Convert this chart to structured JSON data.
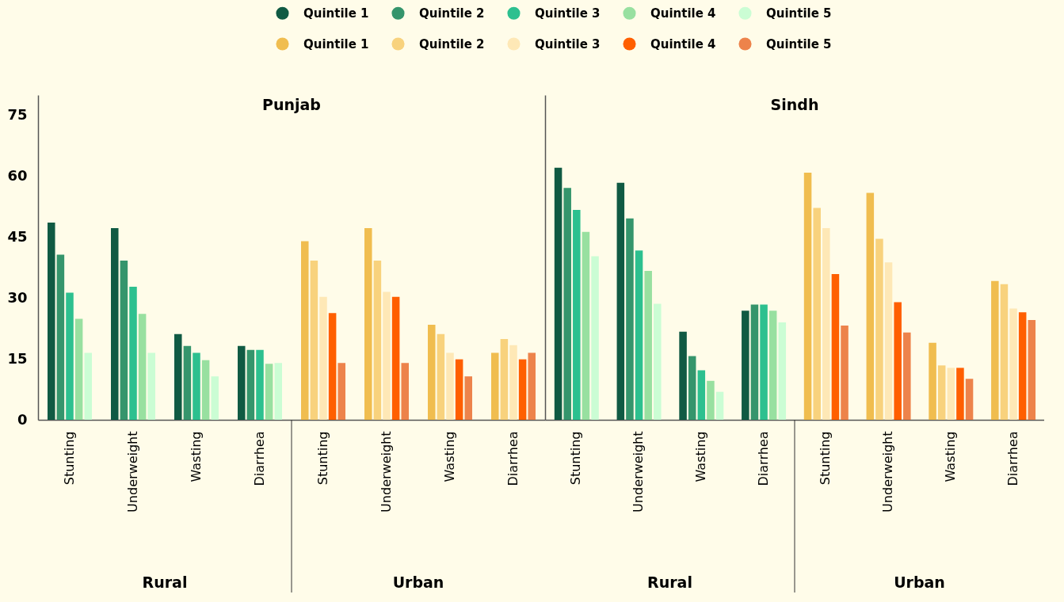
{
  "chart_data": [
    {
      "type": "bar",
      "title": "Punjab",
      "categories": [
        "Stunting",
        "Underweight",
        "Wasting",
        "Diarrhea",
        "Stunting",
        "Underweight",
        "Wasting",
        "Diarrhea"
      ],
      "ylim": [
        0,
        80
      ],
      "yticks": [
        0,
        15,
        30,
        45,
        60,
        75
      ],
      "legend": "top",
      "annotations": [
        "Rural",
        "Urban"
      ],
      "series": [
        {
          "name": "Quintile 1",
          "color": "#105a43",
          "values": [
            48.6,
            47.2,
            21.1,
            18.2,
            null,
            null,
            null,
            null
          ]
        },
        {
          "name": "Quintile 2",
          "color": "#35956c",
          "values": [
            40.7,
            39.2,
            18.2,
            17.2,
            null,
            null,
            null,
            null
          ]
        },
        {
          "name": "Quintile 3",
          "color": "#2dc08f",
          "values": [
            31.3,
            32.8,
            16.5,
            17.2,
            null,
            null,
            null,
            null
          ]
        },
        {
          "name": "Quintile 4",
          "color": "#98e0a0",
          "values": [
            24.9,
            26.1,
            14.7,
            13.8,
            null,
            null,
            null,
            null
          ]
        },
        {
          "name": "Quintile 5",
          "color": "#cbfdd4",
          "values": [
            16.5,
            16.5,
            10.7,
            14.0,
            null,
            null,
            null,
            null
          ]
        },
        {
          "name": "Quintile 1",
          "color": "#f0bd4f",
          "values": [
            null,
            null,
            null,
            null,
            44.0,
            47.2,
            23.4,
            16.5
          ]
        },
        {
          "name": "Quintile 2",
          "color": "#f8d27d",
          "values": [
            null,
            null,
            null,
            null,
            39.2,
            39.2,
            21.1,
            19.9
          ]
        },
        {
          "name": "Quintile 3",
          "color": "#fee8b6",
          "values": [
            null,
            null,
            null,
            null,
            30.3,
            31.5,
            16.5,
            18.4
          ]
        },
        {
          "name": "Quintile 4",
          "color": "#ff5f00",
          "values": [
            null,
            null,
            null,
            null,
            26.3,
            30.3,
            14.9,
            14.9
          ]
        },
        {
          "name": "Quintile 5",
          "color": "#ed834b",
          "values": [
            null,
            null,
            null,
            null,
            14.0,
            14.0,
            10.7,
            16.5
          ]
        }
      ]
    },
    {
      "type": "bar",
      "title": "Sindh",
      "categories": [
        "Stunting",
        "Underweight",
        "Wasting",
        "Diarrhea",
        "Stunting",
        "Underweight",
        "Wasting",
        "Diarrhea"
      ],
      "ylim": [
        0,
        80
      ],
      "yticks": [
        0,
        15,
        30,
        45,
        60,
        75
      ],
      "tick_labels": "x",
      "annotations": [
        "Rural",
        "Urban"
      ],
      "series": [
        {
          "color": "#105a43",
          "values": [
            62.1,
            58.4,
            21.7,
            26.9,
            null,
            null,
            null,
            null
          ]
        },
        {
          "color": "#35956c",
          "values": [
            57.1,
            49.6,
            15.7,
            28.4,
            null,
            null,
            null,
            null
          ]
        },
        {
          "color": "#2dc08f",
          "values": [
            51.7,
            41.7,
            12.2,
            28.4,
            null,
            null,
            null,
            null
          ]
        },
        {
          "color": "#98e0a0",
          "values": [
            46.3,
            36.7,
            9.6,
            26.9,
            null,
            null,
            null,
            null
          ]
        },
        {
          "color": "#cbfdd4",
          "values": [
            40.3,
            28.6,
            6.9,
            24.0,
            null,
            null,
            null,
            null
          ]
        },
        {
          "color": "#f0bd4f",
          "values": [
            null,
            null,
            null,
            null,
            60.9,
            55.9,
            19.0,
            34.2
          ]
        },
        {
          "color": "#f8d27d",
          "values": [
            null,
            null,
            null,
            null,
            52.2,
            44.6,
            13.4,
            33.4
          ]
        },
        {
          "color": "#fee8b6",
          "values": [
            null,
            null,
            null,
            null,
            47.2,
            38.8,
            12.8,
            27.4
          ]
        },
        {
          "color": "#ff5f00",
          "values": [
            null,
            null,
            null,
            null,
            35.9,
            29.0,
            12.8,
            26.5
          ]
        },
        {
          "color": "#ed834b",
          "values": [
            null,
            null,
            null,
            null,
            23.2,
            21.5,
            10.1,
            24.6
          ]
        }
      ]
    }
  ]
}
